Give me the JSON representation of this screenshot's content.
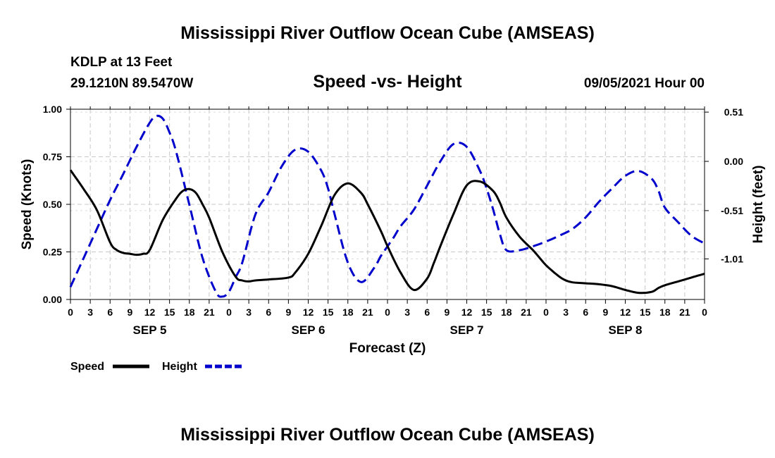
{
  "header": {
    "title": "Mississippi River Outflow Ocean Cube (AMSEAS)",
    "footer_title": "Mississippi River Outflow Ocean Cube (AMSEAS)",
    "station": "KDLP at 13 Feet",
    "position": "29.1210N  89.5470W",
    "chart_heading": "Speed -vs- Height",
    "datetime": "09/05/2021 Hour 00"
  },
  "chart_data": {
    "type": "line",
    "title": "Speed -vs- Height",
    "xlabel": "Forecast (Z)",
    "ylabel": "Speed (Knots)",
    "y2label": "Height (feet)",
    "x_range": [
      0,
      96
    ],
    "ylim": [
      0,
      1.0
    ],
    "y2lim": [
      -1.43,
      0.54
    ],
    "grid": true,
    "x_tick_labels": [
      "0",
      "3",
      "6",
      "9",
      "12",
      "15",
      "18",
      "21",
      "0",
      "3",
      "6",
      "9",
      "12",
      "15",
      "18",
      "21",
      "0",
      "3",
      "6",
      "9",
      "12",
      "15",
      "18",
      "21",
      "0",
      "3",
      "6",
      "9",
      "12",
      "15",
      "18",
      "21",
      "0"
    ],
    "day_labels": [
      "SEP 5",
      "SEP 6",
      "SEP 7",
      "SEP 8"
    ],
    "y_ticks": [
      "0.00",
      "0.25",
      "0.50",
      "0.75",
      "1.00"
    ],
    "y2_ticks": [
      "0.51",
      "0.00",
      "-0.51",
      "-1.01"
    ],
    "y_tick_values": [
      0,
      0.25,
      0.5,
      0.75,
      1.0
    ],
    "y2_tick_values": [
      0.51,
      0.0,
      -0.51,
      -1.01
    ],
    "legend": {
      "position": "bottom-left",
      "speed_label": "Speed",
      "height_label": "Height"
    },
    "series": [
      {
        "name": "Speed",
        "axis": "left",
        "color": "#000000",
        "style": "solid",
        "x": [
          0,
          2,
          4,
          6,
          7,
          8,
          9,
          10,
          11,
          12,
          14,
          16,
          17,
          18,
          19,
          20,
          21,
          23,
          25,
          26,
          27,
          28,
          30,
          33,
          34,
          36,
          38,
          40,
          42,
          44,
          45,
          47,
          48,
          50,
          52,
          54,
          55,
          56,
          58,
          60,
          62,
          64,
          65,
          66,
          68,
          70,
          71,
          72,
          74,
          75,
          76,
          78,
          80,
          82,
          84,
          86,
          88,
          89,
          90,
          92,
          94,
          96
        ],
        "y": [
          0.68,
          0.58,
          0.47,
          0.3,
          0.26,
          0.245,
          0.24,
          0.235,
          0.24,
          0.26,
          0.42,
          0.53,
          0.57,
          0.58,
          0.56,
          0.5,
          0.43,
          0.25,
          0.12,
          0.1,
          0.095,
          0.1,
          0.105,
          0.115,
          0.14,
          0.24,
          0.39,
          0.55,
          0.61,
          0.56,
          0.5,
          0.36,
          0.28,
          0.14,
          0.05,
          0.11,
          0.19,
          0.28,
          0.45,
          0.6,
          0.62,
          0.57,
          0.51,
          0.43,
          0.33,
          0.26,
          0.22,
          0.18,
          0.12,
          0.1,
          0.09,
          0.085,
          0.08,
          0.07,
          0.05,
          0.035,
          0.04,
          0.06,
          0.075,
          0.095,
          0.115,
          0.135
        ]
      },
      {
        "name": "Height",
        "axis": "right",
        "color": "#0000cc",
        "style": "dashed",
        "x": [
          0,
          2,
          4,
          6,
          8,
          10,
          12,
          13,
          14,
          15,
          16,
          18,
          20,
          22,
          23,
          24,
          25,
          26,
          28,
          30,
          32,
          34,
          36,
          38,
          39,
          40,
          42,
          44,
          46,
          47,
          48,
          49,
          50,
          52,
          54,
          56,
          58,
          60,
          62,
          63,
          64,
          65,
          66,
          68,
          70,
          72,
          74,
          76,
          78,
          80,
          82,
          84,
          86,
          88,
          89,
          90,
          92,
          94,
          96
        ],
        "y": [
          -1.3,
          -1.0,
          -0.7,
          -0.4,
          -0.13,
          0.15,
          0.4,
          0.47,
          0.44,
          0.3,
          0.1,
          -0.45,
          -1.0,
          -1.35,
          -1.4,
          -1.35,
          -1.2,
          -1.05,
          -0.55,
          -0.32,
          -0.05,
          0.12,
          0.1,
          -0.1,
          -0.28,
          -0.55,
          -1.05,
          -1.25,
          -1.1,
          -0.98,
          -0.88,
          -0.78,
          -0.67,
          -0.5,
          -0.25,
          0.0,
          0.18,
          0.15,
          -0.1,
          -0.28,
          -0.5,
          -0.75,
          -0.92,
          -0.92,
          -0.88,
          -0.83,
          -0.77,
          -0.7,
          -0.58,
          -0.42,
          -0.28,
          -0.15,
          -0.1,
          -0.18,
          -0.3,
          -0.48,
          -0.63,
          -0.77,
          -0.85
        ]
      }
    ]
  }
}
